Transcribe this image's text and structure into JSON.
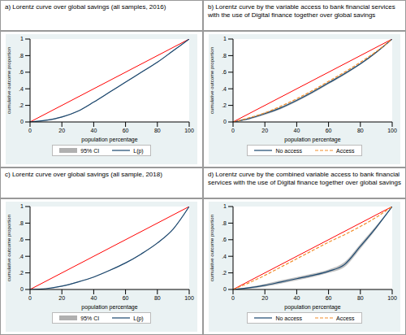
{
  "chart_data": [
    {
      "type": "line",
      "title": "a) Lorentz curve over global savings (all samples, 2016)",
      "x_label": "population percentage",
      "y_label": "cumulative outcome proportion",
      "legend": "bottom",
      "x": [
        0,
        10,
        20,
        30,
        40,
        50,
        60,
        70,
        80,
        90,
        100
      ],
      "xlim": [
        0,
        100
      ],
      "xticks": [
        0,
        20,
        40,
        60,
        80,
        100
      ],
      "ylim": [
        0,
        1
      ],
      "yticks": [
        0,
        {
          "value": 0.2,
          "label": ".2"
        },
        {
          "value": 0.4,
          "label": ".4"
        },
        {
          "value": 0.6,
          "label": ".6"
        },
        {
          "value": 0.8,
          "label": ".8"
        },
        1
      ],
      "reference_line": {
        "x": [
          0,
          100
        ],
        "values": [
          0,
          1
        ],
        "color": "#ff0000"
      },
      "series": [
        {
          "name": "95% CI",
          "type": "band",
          "color": "#b0b0b0",
          "lower": [
            0,
            0.015,
            0.055,
            0.125,
            0.235,
            0.355,
            0.475,
            0.595,
            0.715,
            0.855,
            1
          ],
          "upper": [
            0,
            0.025,
            0.065,
            0.135,
            0.245,
            0.365,
            0.485,
            0.605,
            0.725,
            0.865,
            1
          ]
        },
        {
          "name": "L(p)",
          "type": "line",
          "color": "#1a476f",
          "line_style": "solid",
          "values": [
            0,
            0.02,
            0.06,
            0.13,
            0.24,
            0.36,
            0.48,
            0.6,
            0.72,
            0.86,
            1
          ]
        }
      ]
    },
    {
      "type": "line",
      "title": "b) Lorentz curve by the variable access to bank financial services with the use of Digital finance together over global savings",
      "x_label": "population percentage",
      "y_label": "cumulative outcome proportion",
      "legend": "bottom",
      "x": [
        0,
        10,
        20,
        30,
        40,
        50,
        60,
        70,
        80,
        90,
        100
      ],
      "xlim": [
        0,
        100
      ],
      "xticks": [
        0,
        20,
        40,
        60,
        80,
        100
      ],
      "ylim": [
        0,
        1
      ],
      "yticks": [
        0,
        {
          "value": 0.2,
          "label": ".2"
        },
        {
          "value": 0.4,
          "label": ".4"
        },
        {
          "value": 0.6,
          "label": ".6"
        },
        {
          "value": 0.8,
          "label": ".8"
        },
        1
      ],
      "reference_line": {
        "x": [
          0,
          100
        ],
        "values": [
          0,
          1
        ],
        "color": "#ff0000"
      },
      "series": [
        {
          "type": "band",
          "color": "#b0b0b0",
          "lower": [
            0,
            0.03,
            0.085,
            0.155,
            0.245,
            0.345,
            0.455,
            0.565,
            0.69,
            0.83,
            1
          ],
          "upper": [
            0,
            0.05,
            0.115,
            0.185,
            0.275,
            0.375,
            0.485,
            0.595,
            0.71,
            0.85,
            1
          ]
        },
        {
          "name": "No access",
          "type": "line",
          "color": "#1a476f",
          "line_style": "solid",
          "values": [
            0,
            0.04,
            0.1,
            0.17,
            0.26,
            0.36,
            0.47,
            0.58,
            0.7,
            0.84,
            1
          ]
        },
        {
          "name": "Access",
          "type": "line",
          "color": "#f28e2b",
          "line_style": "dashed",
          "values": [
            0,
            0.05,
            0.11,
            0.19,
            0.28,
            0.38,
            0.49,
            0.6,
            0.72,
            0.85,
            1
          ]
        }
      ]
    },
    {
      "type": "line",
      "title": "c) Lorentz curve over global savings (all sample, 2018)",
      "x_label": "population percentage",
      "y_label": "cumulative outcome proportion",
      "legend": "bottom",
      "x": [
        0,
        10,
        20,
        30,
        40,
        50,
        60,
        70,
        80,
        90,
        100
      ],
      "xlim": [
        0,
        100
      ],
      "xticks": [
        0,
        20,
        40,
        60,
        80,
        100
      ],
      "ylim": [
        0,
        1
      ],
      "yticks": [
        0,
        {
          "value": 0.2,
          "label": ".2"
        },
        {
          "value": 0.4,
          "label": ".4"
        },
        {
          "value": 0.6,
          "label": ".6"
        },
        {
          "value": 0.8,
          "label": ".8"
        },
        1
      ],
      "reference_line": {
        "x": [
          0,
          100
        ],
        "values": [
          0,
          1
        ],
        "color": "#ff0000"
      },
      "series": [
        {
          "name": "95% CI",
          "type": "band",
          "color": "#b0b0b0",
          "lower": [
            0,
            0.008,
            0.035,
            0.085,
            0.145,
            0.225,
            0.315,
            0.425,
            0.555,
            0.725,
            1
          ],
          "upper": [
            0,
            0.012,
            0.045,
            0.095,
            0.155,
            0.235,
            0.325,
            0.435,
            0.565,
            0.735,
            1
          ]
        },
        {
          "name": "L(p)",
          "type": "line",
          "color": "#1a476f",
          "line_style": "solid",
          "values": [
            0,
            0.01,
            0.04,
            0.09,
            0.15,
            0.23,
            0.32,
            0.43,
            0.56,
            0.73,
            1
          ]
        }
      ]
    },
    {
      "type": "line",
      "title": "d) Lorentz curve by the combined variable access to bank financial services with the use of Digital finance together over global savings",
      "x_label": "population percentage",
      "y_label": "cumulative outcome proportion",
      "legend": "bottom",
      "x": [
        0,
        10,
        20,
        30,
        40,
        50,
        60,
        70,
        80,
        90,
        100
      ],
      "xlim": [
        0,
        100
      ],
      "xticks": [
        0,
        20,
        40,
        60,
        80,
        100
      ],
      "ylim": [
        0,
        1
      ],
      "yticks": [
        0,
        {
          "value": 0.2,
          "label": ".2"
        },
        {
          "value": 0.4,
          "label": ".4"
        },
        {
          "value": 0.6,
          "label": ".6"
        },
        {
          "value": 0.8,
          "label": ".8"
        },
        1
      ],
      "reference_line": {
        "x": [
          0,
          100
        ],
        "values": [
          0,
          1
        ],
        "color": "#ff0000"
      },
      "series": [
        {
          "type": "band",
          "color": "#b0b0b0",
          "lower": [
            0,
            0.01,
            0.035,
            0.07,
            0.11,
            0.15,
            0.2,
            0.27,
            0.49,
            0.73,
            1
          ],
          "upper": [
            0,
            0.03,
            0.065,
            0.11,
            0.15,
            0.19,
            0.24,
            0.33,
            0.55,
            0.77,
            1
          ]
        },
        {
          "name": "No access",
          "type": "line",
          "color": "#1a476f",
          "line_style": "solid",
          "values": [
            0,
            0.02,
            0.05,
            0.09,
            0.13,
            0.17,
            0.22,
            0.3,
            0.52,
            0.75,
            1
          ]
        },
        {
          "name": "Access",
          "type": "line",
          "color": "#f28e2b",
          "line_style": "dashed",
          "values": [
            0,
            0.08,
            0.17,
            0.27,
            0.37,
            0.47,
            0.57,
            0.66,
            0.76,
            0.87,
            1
          ]
        }
      ]
    }
  ]
}
